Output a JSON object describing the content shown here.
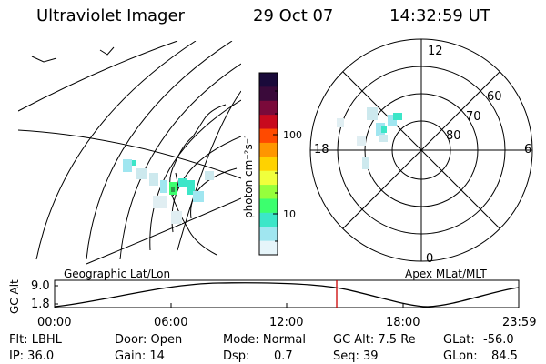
{
  "header": {
    "instrument": "Ultraviolet Imager",
    "date": "29 Oct 07",
    "time": "14:32:59 UT"
  },
  "colorbar": {
    "unit_label": "photon cm⁻²s⁻¹",
    "ticks": [
      "100",
      "10"
    ],
    "colors": [
      "#1a0a3a",
      "#3a0a3a",
      "#7a0a3a",
      "#c80a1e",
      "#ff4a00",
      "#ff9600",
      "#ffd200",
      "#f0ff3c",
      "#96ff3c",
      "#3cff6e",
      "#3ce6c8",
      "#a0e6f0",
      "#e6f5fa"
    ]
  },
  "geo_map": {
    "label": "Geographic Lat/Lon"
  },
  "polar_map": {
    "label": "Apex MLat/MLT",
    "mlt_labels": {
      "top": "12",
      "left": "18",
      "right": "6",
      "bottom": "0"
    },
    "lat_labels": [
      "60",
      "70",
      "80"
    ]
  },
  "altitude_plot": {
    "ylabel": "GC Alt",
    "yticks": [
      "9.0",
      "1.8"
    ],
    "xticks": [
      "00:00",
      "06:00",
      "12:00",
      "18:00",
      "23:59"
    ],
    "marker_color": "#cc0000"
  },
  "status": {
    "filter": "Flt: LBHL",
    "ip": "IP: 36.0",
    "door": "Door: Open",
    "gain": "Gain: 14",
    "mode": "Mode: Normal",
    "dsp_label": "Dsp:",
    "dsp_value": "0.7",
    "gc_alt": "GC Alt: 7.5 Re",
    "seq": "Seq: 39",
    "glat_label": "GLat:",
    "glat_value": "-56.0",
    "glon_label": "GLon:",
    "glon_value": "84.5"
  }
}
